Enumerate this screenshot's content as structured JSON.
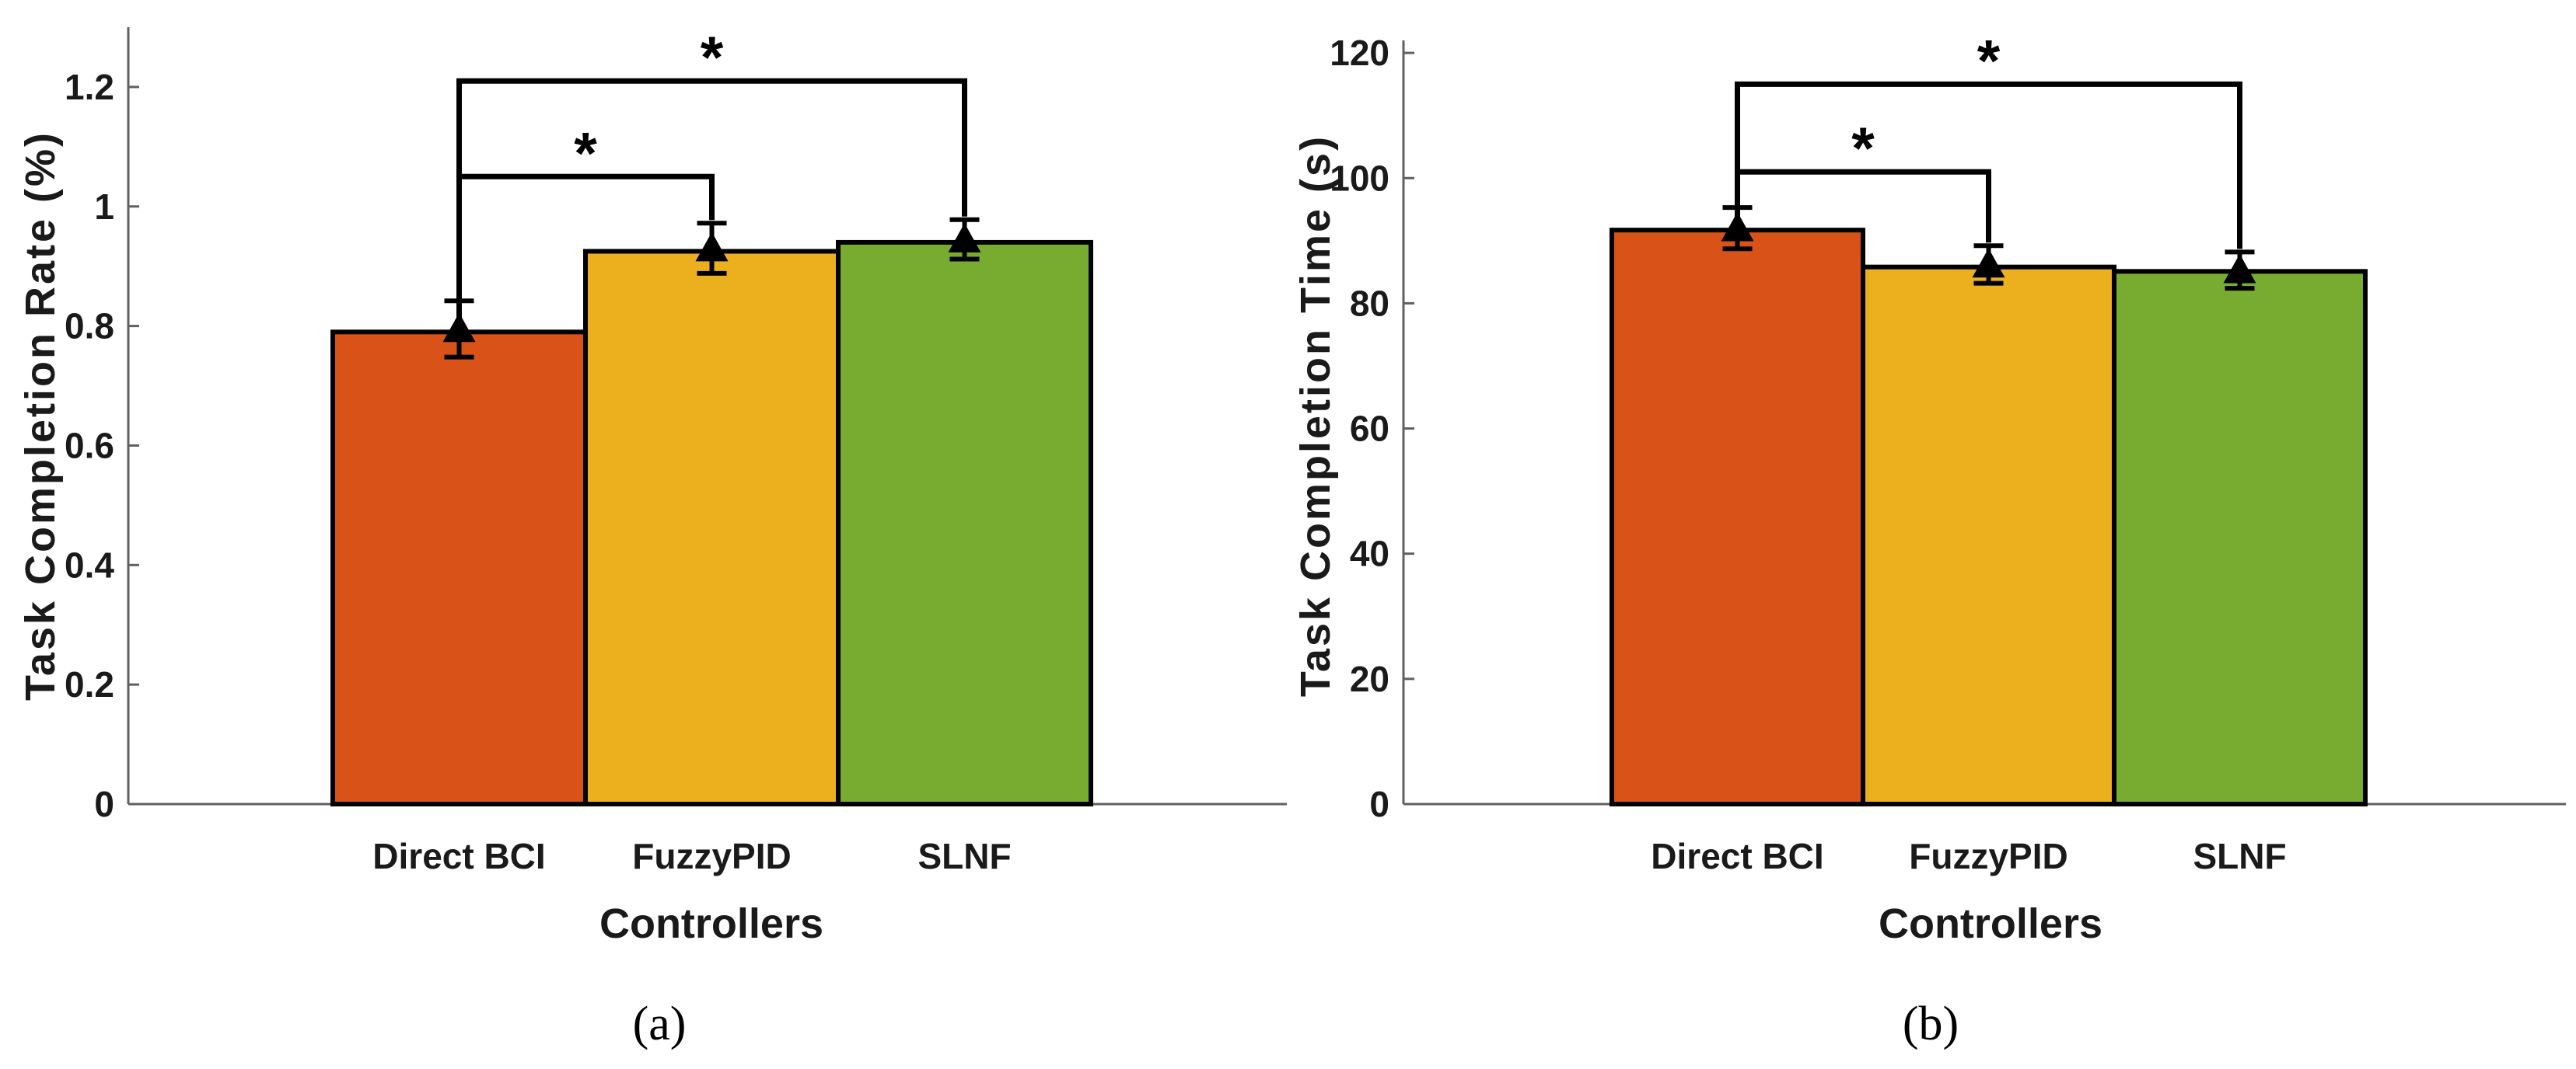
{
  "colors": {
    "direct": "#d95218",
    "fuzzy": "#ecb01f",
    "slnf": "#77ac30",
    "axis": "#606060",
    "ink": "#000000"
  },
  "chart_data": [
    {
      "panel": "(a)",
      "type": "bar",
      "categories": [
        "Direct BCI",
        "FuzzyPID",
        "SLNF"
      ],
      "values": [
        0.79,
        0.925,
        0.94
      ],
      "means": [
        0.795,
        0.93,
        0.945
      ],
      "errors": [
        0.047,
        0.042,
        0.033
      ],
      "xlabel": "Controllers",
      "ylabel": "Task Completion Rate (%)",
      "ylim": [
        0,
        1.3
      ],
      "yticks": [
        0,
        0.2,
        0.4,
        0.6,
        0.8,
        1,
        1.2
      ],
      "ytick_labels": [
        "0",
        "0.2",
        "0.4",
        "0.6",
        "0.8",
        "1",
        "1.2"
      ],
      "significance": [
        {
          "from": 0,
          "to": 1,
          "y": 1.05,
          "label": "*"
        },
        {
          "from": 0,
          "to": 2,
          "y": 1.21,
          "label": "*"
        }
      ]
    },
    {
      "panel": "(b)",
      "type": "bar",
      "categories": [
        "Direct BCI",
        "FuzzyPID",
        "SLNF"
      ],
      "values": [
        91.7,
        85.8,
        85.1
      ],
      "means": [
        92.0,
        86.2,
        85.3
      ],
      "errors": [
        3.3,
        3.0,
        2.9
      ],
      "xlabel": "Controllers",
      "ylabel": "Task Completion Time (s)",
      "ylim": [
        0,
        122
      ],
      "yticks": [
        0,
        20,
        40,
        60,
        80,
        100,
        120
      ],
      "ytick_labels": [
        "0",
        "20",
        "40",
        "60",
        "80",
        "100",
        "120"
      ],
      "significance": [
        {
          "from": 0,
          "to": 1,
          "y": 101,
          "label": "*"
        },
        {
          "from": 0,
          "to": 2,
          "y": 115,
          "label": "*"
        }
      ]
    }
  ]
}
